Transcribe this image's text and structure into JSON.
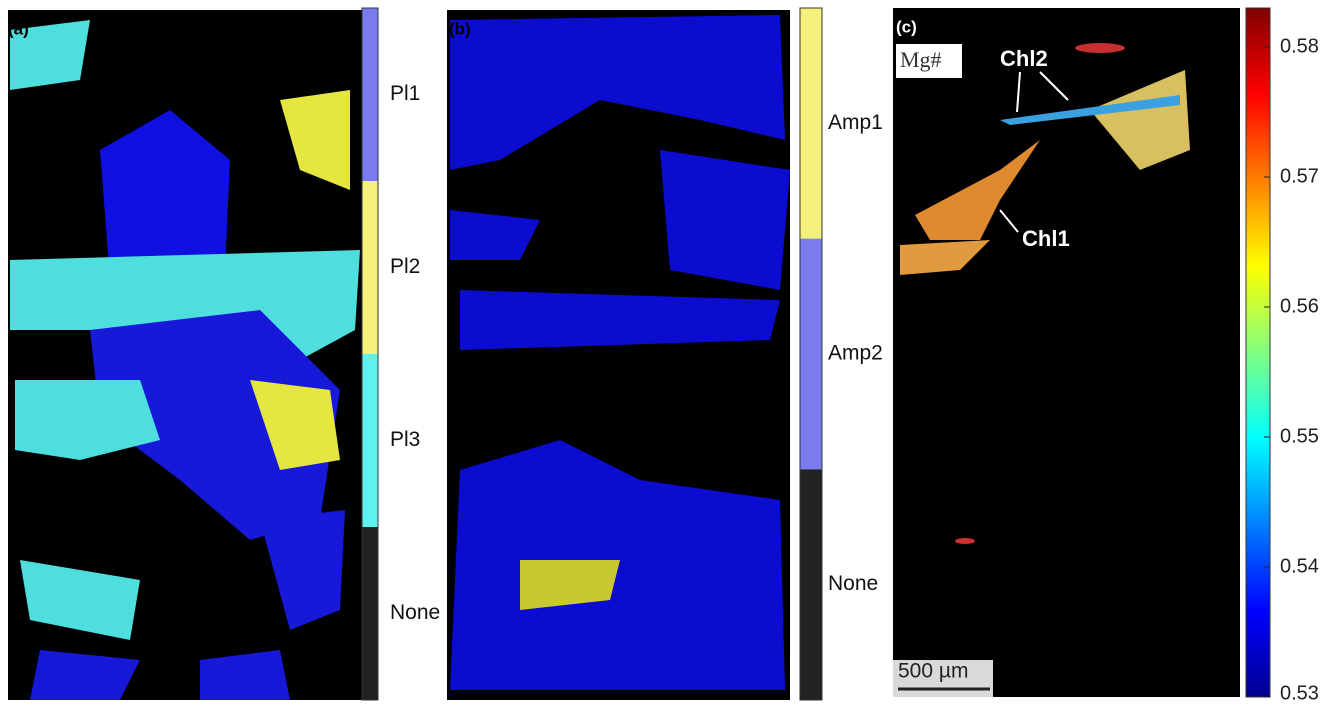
{
  "panels": [
    {
      "label": "(a)",
      "legend": [
        {
          "name": "Pl1",
          "color": "#7b7bf0"
        },
        {
          "name": "Pl2",
          "color": "#f5f07a"
        },
        {
          "name": "Pl3",
          "color": "#5ff0f0"
        },
        {
          "name": "None",
          "color": "#222222"
        }
      ]
    },
    {
      "label": "(b)",
      "legend": [
        {
          "name": "Amp1",
          "color": "#f5f07a"
        },
        {
          "name": "Amp2",
          "color": "#7b7bf0"
        },
        {
          "name": "None",
          "color": "#222222"
        }
      ]
    },
    {
      "label": "(c)",
      "quantity": "Mg#",
      "annotations": [
        "Chl2",
        "Chl1"
      ],
      "scale_bar": "500 µm",
      "colorbar": {
        "lim": [
          0.53,
          0.583
        ],
        "ticks": [
          0.53,
          0.54,
          0.55,
          0.56,
          0.57,
          0.58
        ]
      }
    }
  ]
}
